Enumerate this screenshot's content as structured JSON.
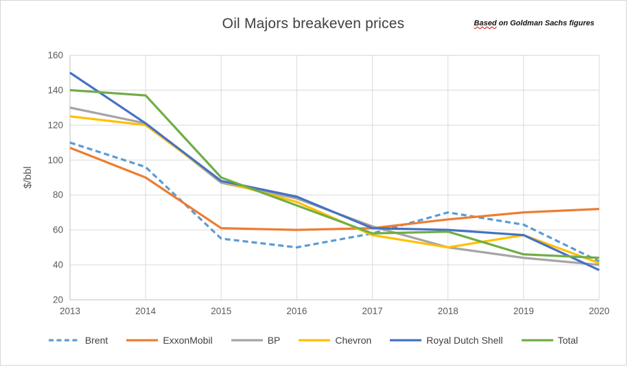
{
  "title": "Oil Majors breakeven prices",
  "annotation": {
    "underlined_word": "Based",
    "rest": " on Goldman Sachs figures",
    "squiggle_color": "#e00000"
  },
  "colors": {
    "gridline": "#d9d9d9",
    "axis_line": "#bfbfbf",
    "tick_label": "#595959",
    "title_text": "#404040",
    "legend_text": "#404040"
  },
  "chart_data": {
    "type": "line",
    "x": [
      "2013",
      "2014",
      "2015",
      "2016",
      "2017",
      "2018",
      "2019",
      "2020"
    ],
    "xlabel": "",
    "ylabel": "$/bbl",
    "ylim": [
      20,
      160
    ],
    "ytick_step": 20,
    "grid": true,
    "legend_position": "bottom",
    "series": [
      {
        "name": "Brent",
        "color": "#5B9BD5",
        "dashed": true,
        "values": [
          110,
          96,
          55,
          50,
          58,
          70,
          63,
          42
        ]
      },
      {
        "name": "ExxonMobil",
        "color": "#ED7D31",
        "dashed": false,
        "values": [
          107,
          90,
          61,
          60,
          61,
          66,
          70,
          72
        ]
      },
      {
        "name": "BP",
        "color": "#A5A5A5",
        "dashed": false,
        "values": [
          130,
          121,
          87,
          78,
          62,
          50,
          44,
          40
        ]
      },
      {
        "name": "Chevron",
        "color": "#FFC000",
        "dashed": false,
        "values": [
          125,
          120,
          88,
          76,
          57,
          50,
          57,
          41
        ]
      },
      {
        "name": "Royal Dutch Shell",
        "color": "#4472C4",
        "dashed": false,
        "values": [
          150,
          121,
          88,
          79,
          61,
          60,
          57,
          37
        ]
      },
      {
        "name": "Total",
        "color": "#70AD47",
        "dashed": false,
        "values": [
          140,
          137,
          90,
          74,
          58,
          59,
          46,
          44
        ]
      }
    ]
  }
}
